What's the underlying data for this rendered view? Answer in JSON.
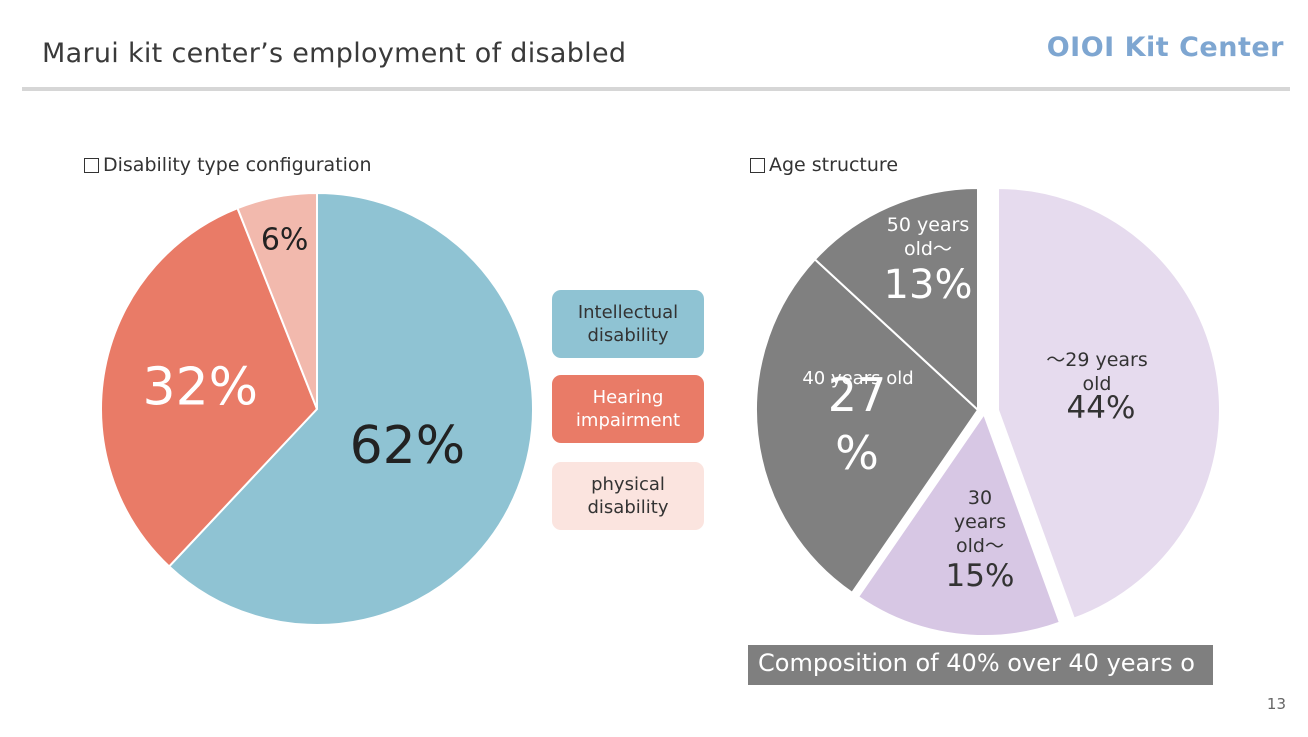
{
  "header": {
    "title": "Marui kit center’s employment of disabled",
    "logo": "OIOI Kit Center"
  },
  "page_number": "13",
  "colors": {
    "intellectual": "#8fc3d3",
    "hearing": "#e97b67",
    "physical": "#f2b9ad",
    "physical_legend_bg": "#fbe4df",
    "age_under29": "#e6dbee",
    "age_30s": "#d7c7e4",
    "age_40s": "#808080",
    "age_50plus": "#808080",
    "footer_bg": "#7f7f7f"
  },
  "left_section": {
    "label": "Disability type configuration"
  },
  "right_section": {
    "label": "Age structure",
    "footer_note": "Composition of 40% over 40 years o"
  },
  "legend": [
    {
      "label": "Intellectual\ndisability"
    },
    {
      "label": "Hearing\nimpairment"
    },
    {
      "label": "physical\ndisability"
    }
  ],
  "chart_data": [
    {
      "type": "pie",
      "title": "Disability type configuration",
      "categories": [
        "Intellectual disability",
        "Hearing impairment",
        "physical disability"
      ],
      "values": [
        62,
        32,
        6
      ],
      "value_labels": [
        "62%",
        "32%",
        "6%"
      ],
      "legend_position": "right"
    },
    {
      "type": "pie",
      "title": "Age structure",
      "categories": [
        "～29 years old",
        "30 years old～",
        "40 years old",
        "50 years old～"
      ],
      "values": [
        44,
        15,
        27,
        13
      ],
      "value_labels": [
        "44%",
        "15%",
        "27\n%",
        "13%"
      ],
      "exploded": true
    }
  ]
}
